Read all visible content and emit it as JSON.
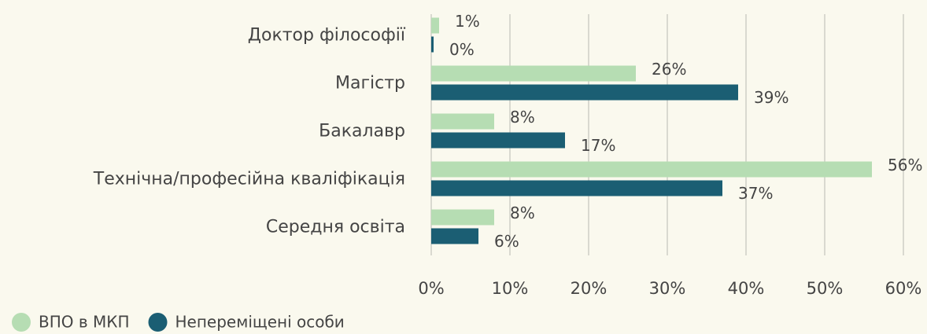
{
  "chart_data": {
    "type": "bar",
    "orientation": "horizontal",
    "categories": [
      "Доктор філософії",
      "Магістр",
      "Бакалавр",
      "Технічна/професійна кваліфікація",
      "Середня освіта"
    ],
    "series": [
      {
        "name": "ВПО в МКП",
        "color": "#b6ddb3",
        "values": [
          1,
          26,
          8,
          56,
          8
        ],
        "value_labels": [
          "1%",
          "26%",
          "8%",
          "56%",
          "8%"
        ]
      },
      {
        "name": "Непереміщені особи",
        "color": "#1b5e73",
        "values": [
          0.3,
          39,
          17,
          37,
          6
        ],
        "value_labels": [
          "0%",
          "39%",
          "17%",
          "37%",
          "6%"
        ]
      }
    ],
    "xlim": [
      0,
      60
    ],
    "xticks": [
      {
        "value": 0,
        "label": "0%"
      },
      {
        "value": 10,
        "label": "10%"
      },
      {
        "value": 20,
        "label": "20%"
      },
      {
        "value": 30,
        "label": "30%"
      },
      {
        "value": 40,
        "label": "40%"
      },
      {
        "value": 50,
        "label": "50%"
      },
      {
        "value": 60,
        "label": "60%"
      }
    ],
    "grid": true,
    "legend": "bottom-left"
  }
}
